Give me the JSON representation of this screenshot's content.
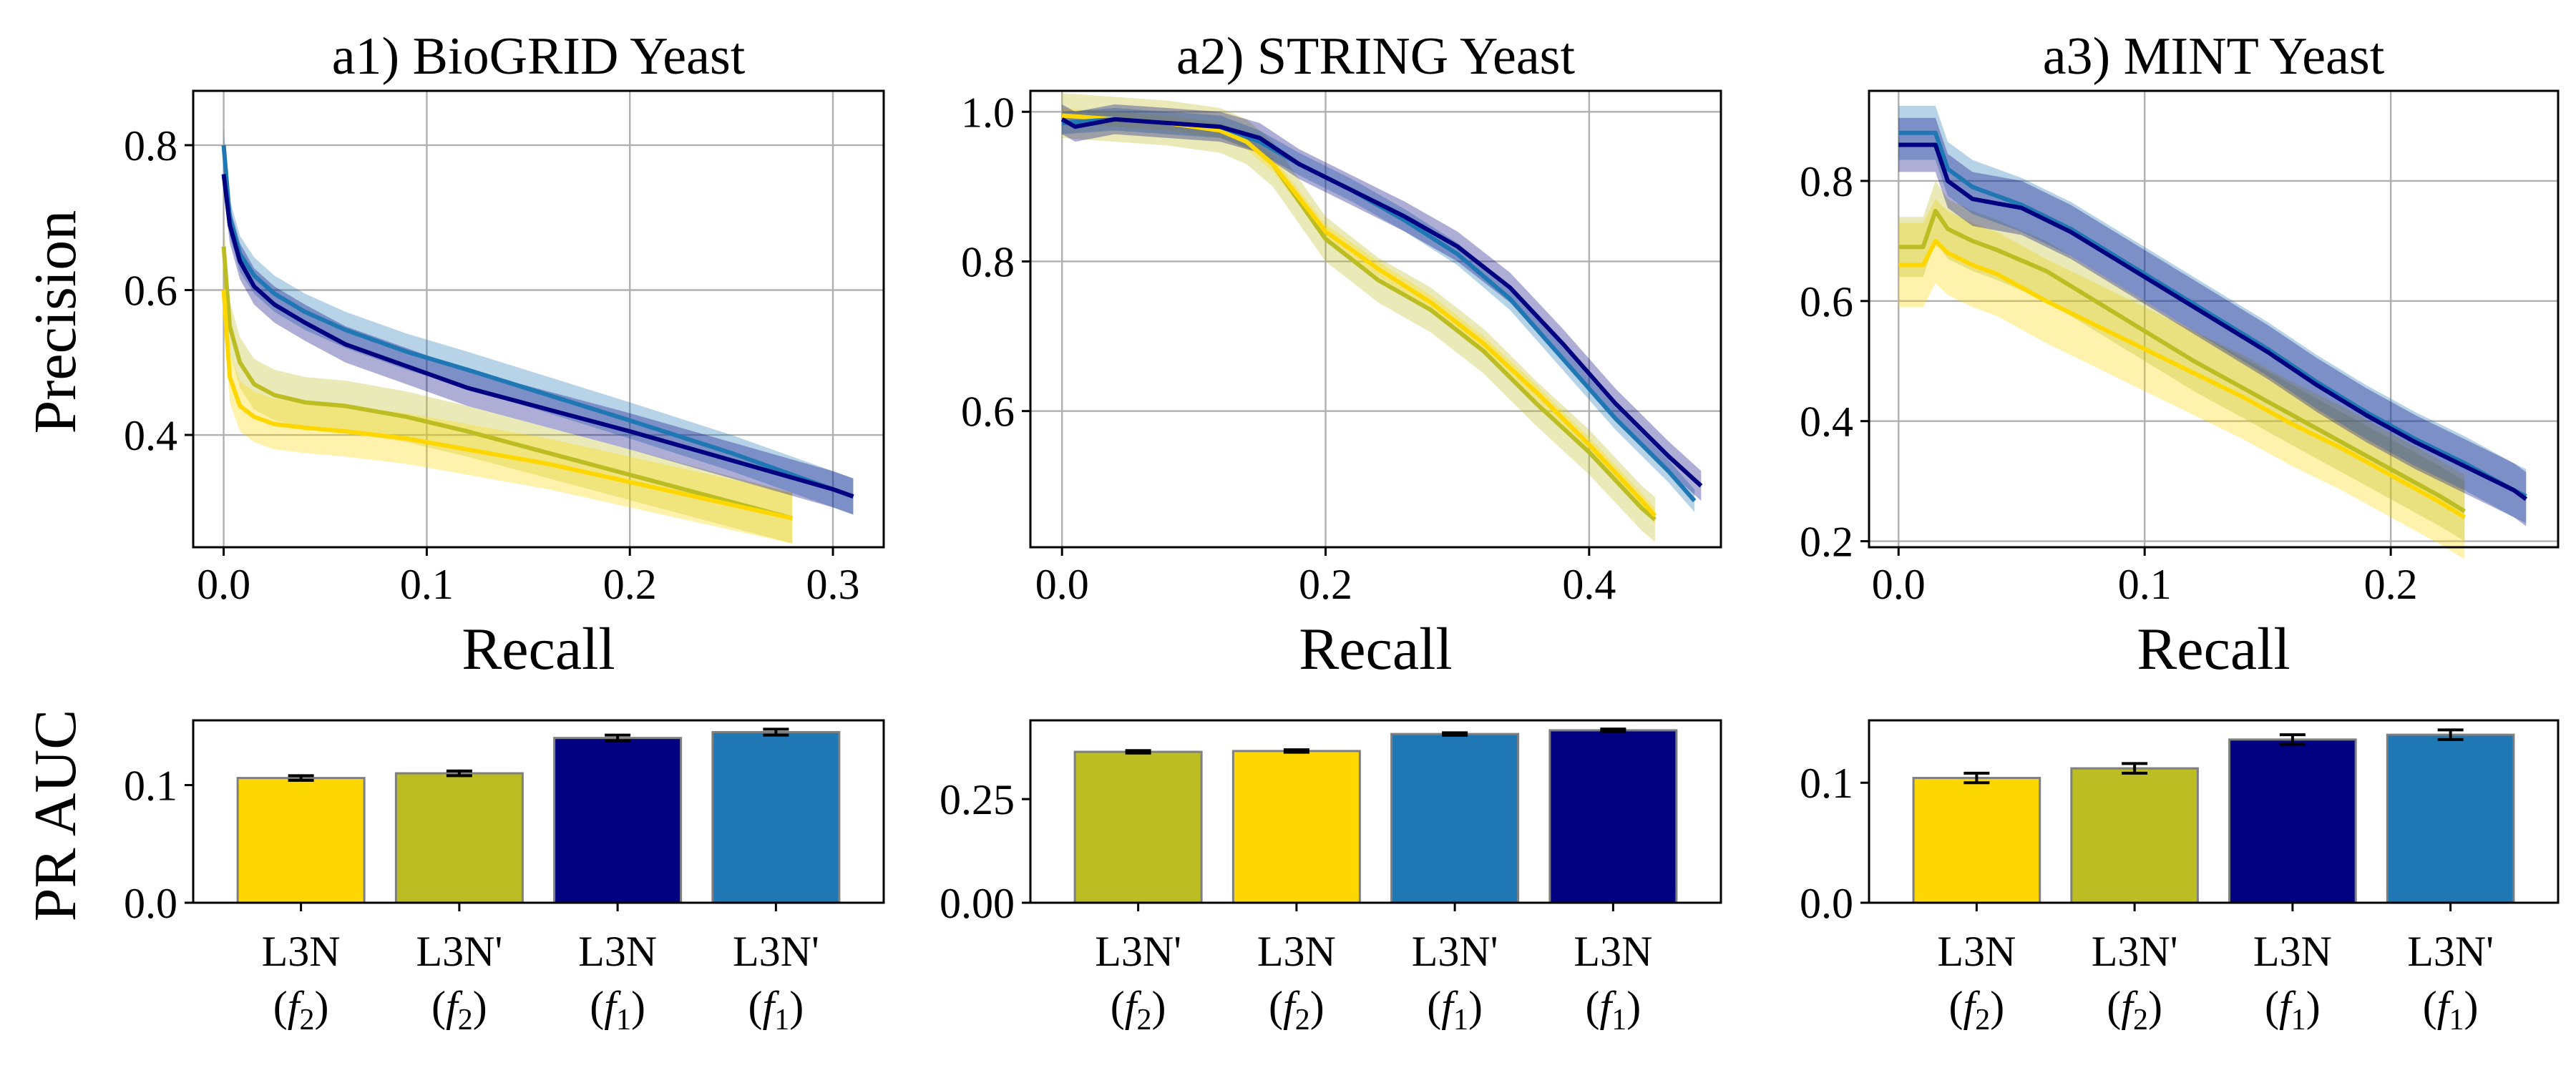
{
  "colors": {
    "L3N_f1": "#000080",
    "L3N_prime_f1": "#1f77b4",
    "L3N_f2": "#ffd700",
    "L3N_prime_f2": "#bcbd22"
  },
  "figure": {
    "line_row_ylabel": "Precision",
    "bar_row_ylabel": "PR AUC"
  },
  "chart_data": [
    {
      "type": "line",
      "title": "a1) BioGRID Yeast",
      "xlabel": "Recall",
      "ylabel": "Precision",
      "xlim": [
        -0.015,
        0.325
      ],
      "ylim": [
        0.245,
        0.875
      ],
      "xticks": [
        0.0,
        0.1,
        0.2,
        0.3
      ],
      "xtick_labels": [
        "0.0",
        "0.1",
        "0.2",
        "0.3"
      ],
      "yticks": [
        0.4,
        0.6,
        0.8
      ],
      "ytick_labels": [
        "0.4",
        "0.6",
        "0.8"
      ],
      "grid": true,
      "series": [
        {
          "key": "L3N_prime_f2",
          "band": 0.035,
          "x": [
            0.0,
            0.003,
            0.008,
            0.015,
            0.025,
            0.04,
            0.06,
            0.09,
            0.12,
            0.16,
            0.2,
            0.24,
            0.28
          ],
          "y": [
            0.66,
            0.55,
            0.5,
            0.47,
            0.455,
            0.445,
            0.44,
            0.425,
            0.405,
            0.375,
            0.345,
            0.315,
            0.285
          ]
        },
        {
          "key": "L3N_f2",
          "band": 0.035,
          "x": [
            0.0,
            0.003,
            0.008,
            0.015,
            0.025,
            0.04,
            0.06,
            0.09,
            0.12,
            0.16,
            0.2,
            0.24,
            0.28
          ],
          "y": [
            0.6,
            0.48,
            0.44,
            0.425,
            0.415,
            0.41,
            0.405,
            0.395,
            0.38,
            0.36,
            0.335,
            0.31,
            0.285
          ]
        },
        {
          "key": "L3N_prime_f1",
          "band": 0.025,
          "x": [
            0.0,
            0.003,
            0.008,
            0.015,
            0.025,
            0.04,
            0.06,
            0.09,
            0.12,
            0.16,
            0.2,
            0.25,
            0.3,
            0.31
          ],
          "y": [
            0.8,
            0.7,
            0.65,
            0.62,
            0.595,
            0.57,
            0.545,
            0.515,
            0.49,
            0.455,
            0.42,
            0.375,
            0.325,
            0.315
          ]
        },
        {
          "key": "L3N_f1",
          "band": 0.025,
          "x": [
            0.0,
            0.003,
            0.008,
            0.015,
            0.025,
            0.04,
            0.06,
            0.09,
            0.12,
            0.16,
            0.2,
            0.25,
            0.3,
            0.31
          ],
          "y": [
            0.76,
            0.69,
            0.64,
            0.605,
            0.58,
            0.555,
            0.525,
            0.495,
            0.465,
            0.435,
            0.405,
            0.365,
            0.325,
            0.315
          ]
        }
      ]
    },
    {
      "type": "line",
      "title": "a2) STRING Yeast",
      "xlabel": "Recall",
      "ylabel": "",
      "xlim": [
        -0.024,
        0.5
      ],
      "ylim": [
        0.418,
        1.028
      ],
      "xticks": [
        0.0,
        0.2,
        0.4
      ],
      "xtick_labels": [
        "0.0",
        "0.2",
        "0.4"
      ],
      "yticks": [
        0.6,
        0.8,
        1.0
      ],
      "ytick_labels": [
        "0.6",
        "0.8",
        "1.0"
      ],
      "grid": true,
      "series": [
        {
          "key": "L3N_prime_f2",
          "band": 0.03,
          "x": [
            0.0,
            0.04,
            0.08,
            0.12,
            0.14,
            0.16,
            0.18,
            0.2,
            0.24,
            0.28,
            0.32,
            0.36,
            0.4,
            0.44,
            0.45
          ],
          "y": [
            0.995,
            0.99,
            0.985,
            0.975,
            0.96,
            0.93,
            0.88,
            0.83,
            0.775,
            0.735,
            0.68,
            0.61,
            0.545,
            0.47,
            0.455
          ]
        },
        {
          "key": "L3N_f2",
          "band": 0.01,
          "x": [
            0.0,
            0.04,
            0.08,
            0.12,
            0.14,
            0.16,
            0.18,
            0.2,
            0.24,
            0.28,
            0.32,
            0.36,
            0.4,
            0.44,
            0.45
          ],
          "y": [
            0.995,
            0.99,
            0.985,
            0.975,
            0.96,
            0.93,
            0.885,
            0.84,
            0.79,
            0.745,
            0.69,
            0.625,
            0.555,
            0.48,
            0.46
          ]
        },
        {
          "key": "L3N_prime_f1",
          "band": 0.015,
          "x": [
            0.0,
            0.04,
            0.08,
            0.12,
            0.15,
            0.18,
            0.22,
            0.26,
            0.3,
            0.34,
            0.38,
            0.42,
            0.46,
            0.48
          ],
          "y": [
            0.985,
            0.99,
            0.985,
            0.98,
            0.96,
            0.93,
            0.895,
            0.855,
            0.81,
            0.75,
            0.67,
            0.59,
            0.52,
            0.48
          ]
        },
        {
          "key": "L3N_f1",
          "band": 0.02,
          "x": [
            0.0,
            0.01,
            0.04,
            0.08,
            0.12,
            0.15,
            0.18,
            0.22,
            0.26,
            0.3,
            0.34,
            0.38,
            0.42,
            0.46,
            0.485
          ],
          "y": [
            0.99,
            0.98,
            0.99,
            0.985,
            0.98,
            0.965,
            0.93,
            0.895,
            0.86,
            0.82,
            0.765,
            0.69,
            0.61,
            0.54,
            0.5
          ]
        }
      ]
    },
    {
      "type": "line",
      "title": "a3) MINT Yeast",
      "xlabel": "Recall",
      "ylabel": "",
      "xlim": [
        -0.012,
        0.268
      ],
      "ylim": [
        0.19,
        0.95
      ],
      "xticks": [
        0.0,
        0.1,
        0.2
      ],
      "xtick_labels": [
        "0.0",
        "0.1",
        "0.2"
      ],
      "yticks": [
        0.2,
        0.4,
        0.6,
        0.8
      ],
      "ytick_labels": [
        "0.2",
        "0.4",
        "0.6",
        "0.8"
      ],
      "grid": true,
      "series": [
        {
          "key": "L3N_f2",
          "band": 0.07,
          "x": [
            0.0,
            0.01,
            0.015,
            0.02,
            0.03,
            0.04,
            0.06,
            0.08,
            0.1,
            0.12,
            0.14,
            0.16,
            0.18,
            0.2,
            0.22,
            0.23
          ],
          "y": [
            0.66,
            0.66,
            0.7,
            0.68,
            0.66,
            0.645,
            0.6,
            0.56,
            0.52,
            0.48,
            0.44,
            0.395,
            0.355,
            0.31,
            0.265,
            0.24
          ]
        },
        {
          "key": "L3N_prime_f2",
          "band": 0.05,
          "x": [
            0.0,
            0.01,
            0.015,
            0.02,
            0.03,
            0.04,
            0.06,
            0.08,
            0.1,
            0.12,
            0.14,
            0.16,
            0.18,
            0.2,
            0.22,
            0.23
          ],
          "y": [
            0.69,
            0.69,
            0.75,
            0.72,
            0.7,
            0.685,
            0.65,
            0.6,
            0.55,
            0.5,
            0.455,
            0.41,
            0.365,
            0.32,
            0.275,
            0.25
          ]
        },
        {
          "key": "L3N_prime_f1",
          "band": 0.045,
          "x": [
            0.0,
            0.015,
            0.02,
            0.03,
            0.05,
            0.07,
            0.09,
            0.11,
            0.13,
            0.15,
            0.17,
            0.19,
            0.21,
            0.23,
            0.25,
            0.255
          ],
          "y": [
            0.88,
            0.88,
            0.82,
            0.79,
            0.76,
            0.72,
            0.67,
            0.62,
            0.57,
            0.52,
            0.465,
            0.415,
            0.37,
            0.33,
            0.285,
            0.275
          ]
        },
        {
          "key": "L3N_f1",
          "band": 0.045,
          "x": [
            0.0,
            0.015,
            0.02,
            0.03,
            0.05,
            0.07,
            0.09,
            0.11,
            0.13,
            0.15,
            0.17,
            0.19,
            0.21,
            0.23,
            0.25,
            0.255
          ],
          "y": [
            0.86,
            0.86,
            0.8,
            0.77,
            0.755,
            0.715,
            0.665,
            0.615,
            0.565,
            0.515,
            0.46,
            0.41,
            0.365,
            0.325,
            0.285,
            0.27
          ]
        }
      ]
    },
    {
      "type": "bar",
      "title": "",
      "ylabel": "PR AUC",
      "ylim": [
        0.0,
        0.155
      ],
      "yticks": [
        0.0,
        0.1
      ],
      "ytick_labels": [
        "0.0",
        "0.1"
      ],
      "categories": [
        {
          "line1": "L3N",
          "sub": "2",
          "key": "L3N_f2"
        },
        {
          "line1": "L3N'",
          "sub": "2",
          "key": "L3N_prime_f2"
        },
        {
          "line1": "L3N",
          "sub": "1",
          "key": "L3N_f1"
        },
        {
          "line1": "L3N'",
          "sub": "1",
          "key": "L3N_prime_f1"
        }
      ],
      "values": [
        0.106,
        0.11,
        0.14,
        0.145
      ],
      "errors": [
        0.002,
        0.002,
        0.0025,
        0.0025
      ]
    },
    {
      "type": "bar",
      "title": "",
      "ylabel": "",
      "ylim": [
        0.0,
        0.44
      ],
      "yticks": [
        0.0,
        0.25
      ],
      "ytick_labels": [
        "0.00",
        "0.25"
      ],
      "categories": [
        {
          "line1": "L3N'",
          "sub": "2",
          "key": "L3N_prime_f2"
        },
        {
          "line1": "L3N",
          "sub": "2",
          "key": "L3N_f2"
        },
        {
          "line1": "L3N'",
          "sub": "1",
          "key": "L3N_prime_f1"
        },
        {
          "line1": "L3N",
          "sub": "1",
          "key": "L3N_f1"
        }
      ],
      "values": [
        0.364,
        0.366,
        0.407,
        0.416
      ],
      "errors": [
        0.003,
        0.003,
        0.003,
        0.003
      ]
    },
    {
      "type": "bar",
      "title": "",
      "ylabel": "",
      "ylim": [
        0.0,
        0.152
      ],
      "yticks": [
        0.0,
        0.1
      ],
      "ytick_labels": [
        "0.0",
        "0.1"
      ],
      "categories": [
        {
          "line1": "L3N",
          "sub": "2",
          "key": "L3N_f2"
        },
        {
          "line1": "L3N'",
          "sub": "2",
          "key": "L3N_prime_f2"
        },
        {
          "line1": "L3N",
          "sub": "1",
          "key": "L3N_f1"
        },
        {
          "line1": "L3N'",
          "sub": "1",
          "key": "L3N_prime_f1"
        }
      ],
      "values": [
        0.104,
        0.112,
        0.136,
        0.14
      ],
      "errors": [
        0.004,
        0.004,
        0.004,
        0.004
      ]
    }
  ]
}
